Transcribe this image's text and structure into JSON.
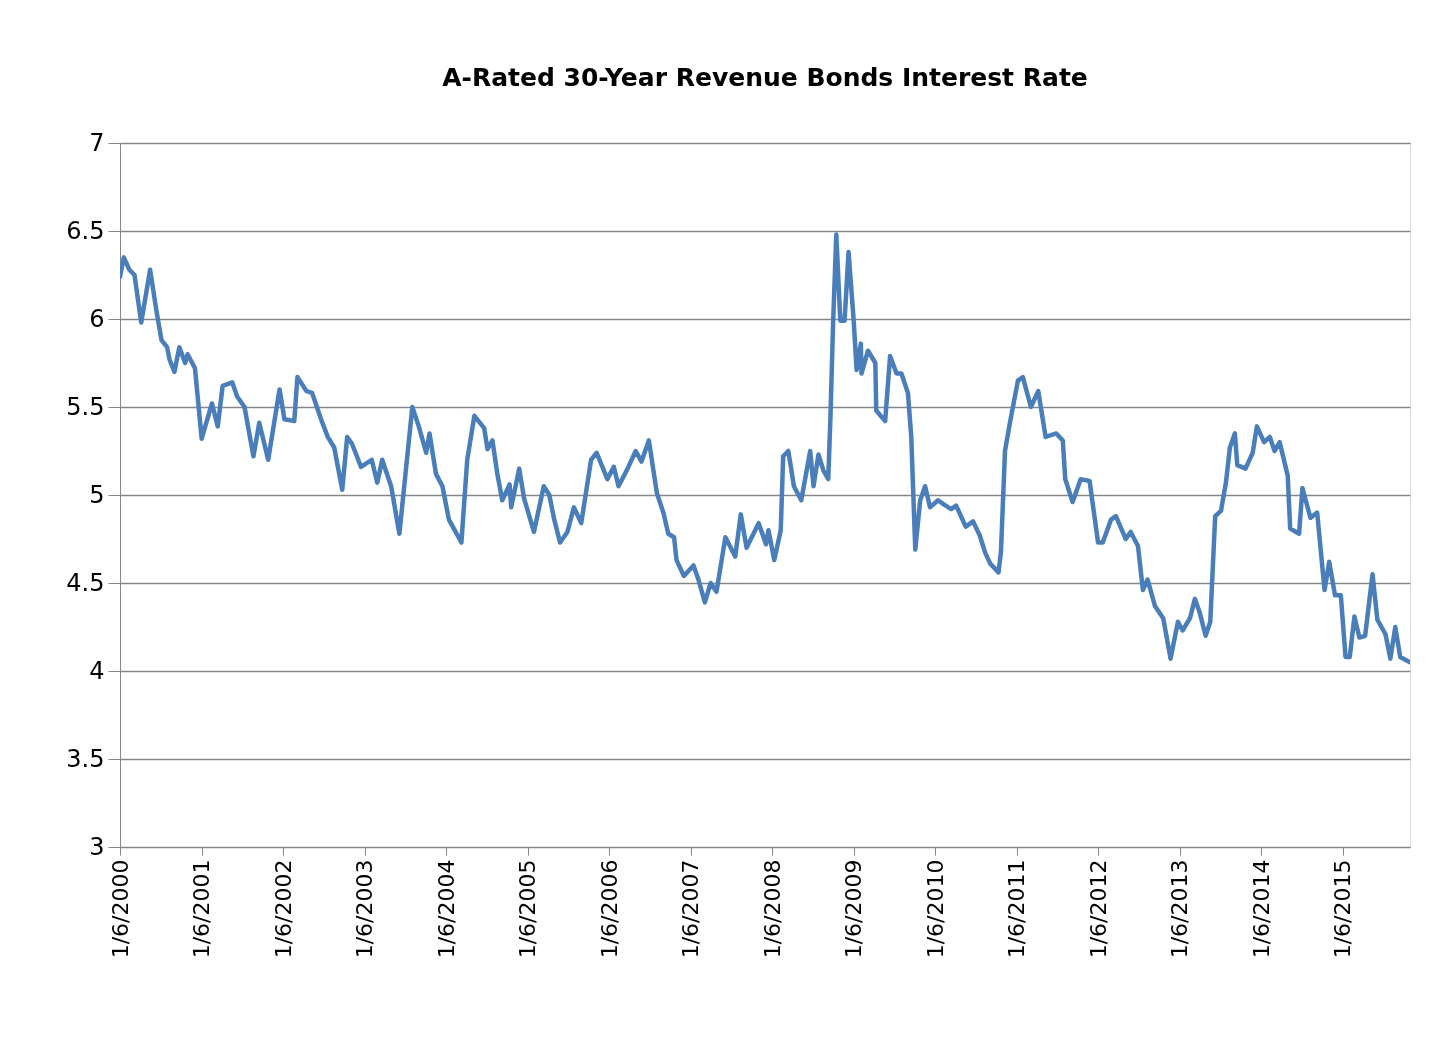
{
  "chart_data": {
    "type": "line",
    "title": "A-Rated 30-Year Revenue Bonds Interest Rate",
    "x": [
      "2000-01-06",
      "2000-01-23",
      "2000-02-17",
      "2000-03-11",
      "2000-04-10",
      "2000-05-20",
      "2000-06-18",
      "2000-07-10",
      "2000-08-04",
      "2000-08-15",
      "2000-09-06",
      "2000-09-28",
      "2000-10-24",
      "2000-11-04",
      "2000-12-07",
      "2001-01-06",
      "2001-02-21",
      "2001-03-19",
      "2001-04-10",
      "2001-05-23",
      "2001-06-14",
      "2001-07-17",
      "2001-08-26",
      "2001-09-21",
      "2001-10-31",
      "2001-12-21",
      "2002-01-12",
      "2002-02-25",
      "2002-03-11",
      "2002-04-21",
      "2002-05-16",
      "2002-06-25",
      "2002-07-25",
      "2002-08-23",
      "2002-09-28",
      "2002-10-20",
      "2002-11-11",
      "2002-12-21",
      "2003-02-07",
      "2003-03-04",
      "2003-03-26",
      "2003-05-05",
      "2003-06-11",
      "2003-08-08",
      "2003-09-06",
      "2003-10-09",
      "2003-10-24",
      "2003-11-22",
      "2003-12-21",
      "2004-01-19",
      "2004-03-15",
      "2004-04-10",
      "2004-05-12",
      "2004-06-25",
      "2004-07-10",
      "2004-08-01",
      "2004-08-23",
      "2004-09-14",
      "2004-10-17",
      "2004-10-24",
      "2004-11-29",
      "2004-12-21",
      "2005-02-03",
      "2005-03-19",
      "2005-04-13",
      "2005-05-05",
      "2005-05-31",
      "2005-07-03",
      "2005-08-01",
      "2005-09-03",
      "2005-10-17",
      "2005-11-11",
      "2005-12-29",
      "2006-01-27",
      "2006-02-17",
      "2006-03-26",
      "2006-05-05",
      "2006-05-31",
      "2006-07-03",
      "2006-08-08",
      "2006-09-06",
      "2006-09-28",
      "2006-10-24",
      "2006-11-04",
      "2006-12-07",
      "2007-01-19",
      "2007-02-10",
      "2007-03-11",
      "2007-04-06",
      "2007-05-02",
      "2007-06-11",
      "2007-07-25",
      "2007-08-19",
      "2007-09-14",
      "2007-11-07",
      "2007-12-10",
      "2007-12-21",
      "2008-01-16",
      "2008-02-14",
      "2008-02-25",
      "2008-03-19",
      "2008-04-13",
      "2008-05-16",
      "2008-06-25",
      "2008-07-10",
      "2008-08-01",
      "2008-08-23",
      "2008-09-14",
      "2008-09-24",
      "2008-10-06",
      "2008-10-20",
      "2008-11-07",
      "2008-11-26",
      "2008-12-14",
      "2009-01-06",
      "2009-01-19",
      "2009-02-07",
      "2009-02-10",
      "2009-03-11",
      "2009-04-13",
      "2009-04-17",
      "2009-05-27",
      "2009-06-18",
      "2009-07-17",
      "2009-08-08",
      "2009-09-06",
      "2009-09-21",
      "2009-10-09",
      "2009-10-31",
      "2009-11-22",
      "2009-12-14",
      "2010-01-19",
      "2010-02-10",
      "2010-03-19",
      "2010-04-10",
      "2010-05-23",
      "2010-06-25",
      "2010-07-25",
      "2010-08-19",
      "2010-09-10",
      "2010-10-17",
      "2010-10-28",
      "2010-11-15",
      "2010-12-07",
      "2011-01-12",
      "2011-02-03",
      "2011-03-11",
      "2011-04-13",
      "2011-05-16",
      "2011-07-03",
      "2011-08-01",
      "2011-08-12",
      "2011-09-14",
      "2011-10-20",
      "2011-11-29",
      "2012-01-06",
      "2012-01-27",
      "2012-03-04",
      "2012-03-26",
      "2012-05-09",
      "2012-05-31",
      "2012-07-03",
      "2012-07-25",
      "2012-08-15",
      "2012-09-17",
      "2012-10-24",
      "2012-11-26",
      "2012-12-29",
      "2013-01-19",
      "2013-02-21",
      "2013-03-15",
      "2013-04-06",
      "2013-05-02",
      "2013-05-23",
      "2013-06-14",
      "2013-07-10",
      "2013-08-01",
      "2013-08-19",
      "2013-09-10",
      "2013-09-21",
      "2013-10-28",
      "2013-11-29",
      "2013-12-18",
      "2014-01-19",
      "2014-02-14",
      "2014-03-07",
      "2014-03-30",
      "2014-05-05",
      "2014-05-16",
      "2014-06-25",
      "2014-07-10",
      "2014-08-15",
      "2014-09-14",
      "2014-10-17",
      "2014-11-07",
      "2014-12-03",
      "2014-12-29",
      "2015-01-19",
      "2015-02-07",
      "2015-02-28",
      "2015-03-22",
      "2015-04-17",
      "2015-05-20",
      "2015-06-11",
      "2015-07-17",
      "2015-08-08",
      "2015-08-30",
      "2015-09-21",
      "2015-11-04"
    ],
    "series": [
      {
        "color": "#4a7ebb",
        "values": [
          6.24,
          6.35,
          6.28,
          6.25,
          5.98,
          6.28,
          6.04,
          5.88,
          5.84,
          5.77,
          5.7,
          5.84,
          5.75,
          5.8,
          5.72,
          5.32,
          5.52,
          5.39,
          5.62,
          5.64,
          5.56,
          5.5,
          5.22,
          5.41,
          5.2,
          5.6,
          5.43,
          5.42,
          5.67,
          5.59,
          5.58,
          5.43,
          5.33,
          5.27,
          5.03,
          5.33,
          5.29,
          5.16,
          5.2,
          5.07,
          5.2,
          5.05,
          4.78,
          5.5,
          5.39,
          5.24,
          5.35,
          5.12,
          5.05,
          4.86,
          4.73,
          5.2,
          5.45,
          5.38,
          5.26,
          5.31,
          5.12,
          4.97,
          5.06,
          4.93,
          5.15,
          4.98,
          4.79,
          5.05,
          5.0,
          4.86,
          4.73,
          4.79,
          4.93,
          4.84,
          5.2,
          5.24,
          5.09,
          5.16,
          5.05,
          5.14,
          5.25,
          5.19,
          5.31,
          5.01,
          4.9,
          4.78,
          4.76,
          4.63,
          4.54,
          4.6,
          4.52,
          4.39,
          4.5,
          4.45,
          4.76,
          4.65,
          4.89,
          4.7,
          4.84,
          4.72,
          4.8,
          4.63,
          4.8,
          5.22,
          5.25,
          5.05,
          4.97,
          5.25,
          5.05,
          5.23,
          5.14,
          5.09,
          5.45,
          5.99,
          6.48,
          5.99,
          5.99,
          6.38,
          5.99,
          5.71,
          5.86,
          5.69,
          5.82,
          5.75,
          5.48,
          5.42,
          5.79,
          5.69,
          5.69,
          5.58,
          5.33,
          4.69,
          4.97,
          5.05,
          4.93,
          4.97,
          4.95,
          4.92,
          4.94,
          4.82,
          4.85,
          4.77,
          4.67,
          4.61,
          4.56,
          4.68,
          5.25,
          5.41,
          5.65,
          5.67,
          5.5,
          5.59,
          5.33,
          5.35,
          5.31,
          5.09,
          4.96,
          5.09,
          5.08,
          4.73,
          4.73,
          4.86,
          4.88,
          4.75,
          4.79,
          4.71,
          4.46,
          4.52,
          4.37,
          4.3,
          4.07,
          4.28,
          4.23,
          4.3,
          4.41,
          4.33,
          4.2,
          4.28,
          4.88,
          4.91,
          5.07,
          5.27,
          5.35,
          5.17,
          5.15,
          5.24,
          5.39,
          5.3,
          5.33,
          5.25,
          5.3,
          5.11,
          4.81,
          4.78,
          5.04,
          4.87,
          4.9,
          4.46,
          4.62,
          4.43,
          4.43,
          4.08,
          4.08,
          4.31,
          4.19,
          4.2,
          4.55,
          4.29,
          4.21,
          4.07,
          4.25,
          4.08,
          4.05
        ]
      }
    ],
    "xlim": [
      "2000-01-06",
      "2015-11-04"
    ],
    "xticks": [
      {
        "value": "2000-01-06",
        "label": "1/6/2000"
      },
      {
        "value": "2001-01-06",
        "label": "1/6/2001"
      },
      {
        "value": "2002-01-06",
        "label": "1/6/2002"
      },
      {
        "value": "2003-01-06",
        "label": "1/6/2003"
      },
      {
        "value": "2004-01-06",
        "label": "1/6/2004"
      },
      {
        "value": "2005-01-06",
        "label": "1/6/2005"
      },
      {
        "value": "2006-01-06",
        "label": "1/6/2006"
      },
      {
        "value": "2007-01-06",
        "label": "1/6/2007"
      },
      {
        "value": "2008-01-06",
        "label": "1/6/2008"
      },
      {
        "value": "2009-01-06",
        "label": "1/6/2009"
      },
      {
        "value": "2010-01-06",
        "label": "1/6/2010"
      },
      {
        "value": "2011-01-06",
        "label": "1/6/2011"
      },
      {
        "value": "2012-01-06",
        "label": "1/6/2012"
      },
      {
        "value": "2013-01-06",
        "label": "1/6/2013"
      },
      {
        "value": "2014-01-06",
        "label": "1/6/2014"
      },
      {
        "value": "2015-01-06",
        "label": "1/6/2015"
      }
    ],
    "ylim": [
      3,
      7
    ],
    "yticks": [
      3,
      3.5,
      4,
      4.5,
      5,
      5.5,
      6,
      6.5,
      7
    ],
    "grid": "y",
    "legend": false,
    "marker": "none",
    "line_style": "solid"
  }
}
